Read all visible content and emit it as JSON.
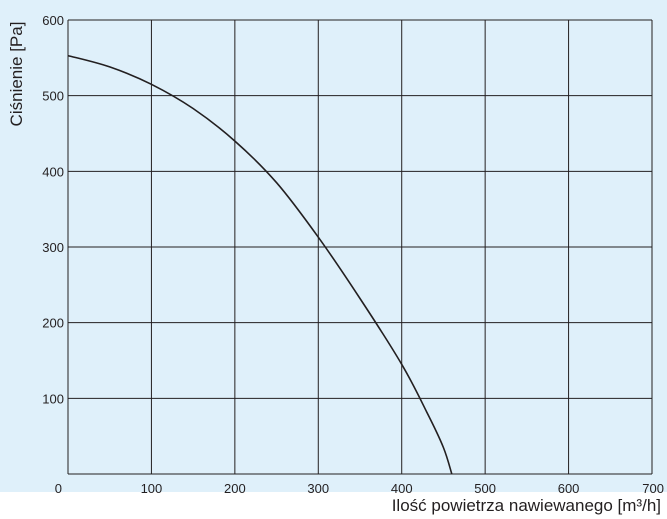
{
  "chart_data": {
    "type": "line",
    "title": "",
    "xlabel": "Ilość powietrza nawiewanego [m³/h]",
    "ylabel": "Ciśnienie [Pa]",
    "xlim": [
      0,
      700
    ],
    "ylim": [
      0,
      600
    ],
    "x_ticks": [
      "0",
      "100",
      "200",
      "300",
      "400",
      "500",
      "600",
      "700"
    ],
    "y_ticks": [
      "100",
      "200",
      "300",
      "400",
      "500",
      "600"
    ],
    "grid": true,
    "colors": {
      "background": "#dff0fa",
      "grid": "#231f20",
      "line": "#231f20"
    },
    "series": [
      {
        "x": [
          0,
          50,
          100,
          150,
          200,
          250,
          300,
          350,
          400,
          430,
          450,
          460
        ],
        "y": [
          553,
          538,
          515,
          483,
          440,
          385,
          313,
          232,
          145,
          82,
          35,
          0
        ]
      }
    ]
  }
}
